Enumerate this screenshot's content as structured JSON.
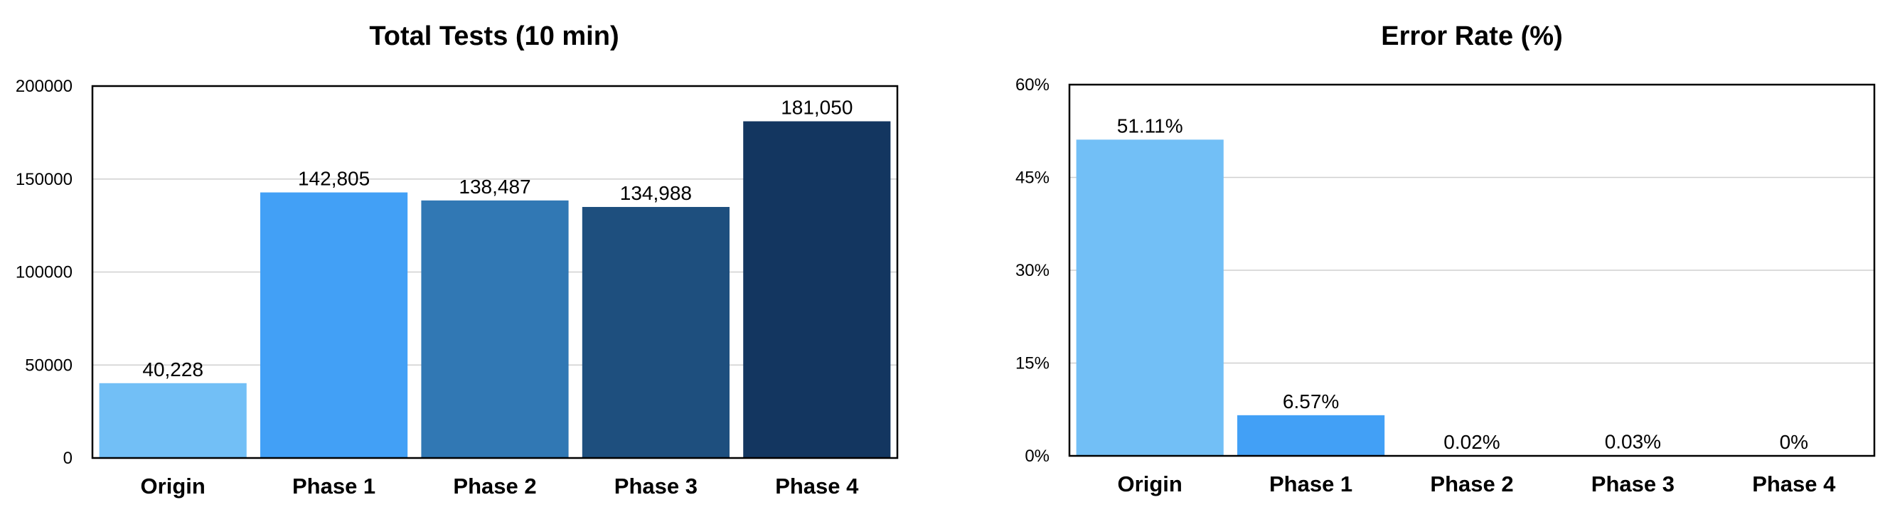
{
  "chart_data": [
    {
      "type": "bar",
      "title": "Total Tests (10 min)",
      "categories": [
        "Origin",
        "Phase 1",
        "Phase 2",
        "Phase 3",
        "Phase 4"
      ],
      "values": [
        40228,
        142805,
        138487,
        134988,
        181050
      ],
      "data_labels": [
        "40,228",
        "142,805",
        "138,487",
        "134,988",
        "181,050"
      ],
      "colors": [
        "#72bff6",
        "#42a0f6",
        "#3178b4",
        "#1e4f7e",
        "#133660"
      ],
      "ylim": [
        0,
        200000
      ],
      "yticks": [
        0,
        50000,
        100000,
        150000,
        200000
      ],
      "ytick_labels": [
        "0",
        "50000",
        "100000",
        "150000",
        "200000"
      ],
      "xlabel": "",
      "ylabel": "",
      "grid": true,
      "legend": "none"
    },
    {
      "type": "bar",
      "title": "Error Rate (%)",
      "categories": [
        "Origin",
        "Phase 1",
        "Phase 2",
        "Phase 3",
        "Phase 4"
      ],
      "values": [
        51.11,
        6.57,
        0.02,
        0.03,
        0
      ],
      "data_labels": [
        "51.11%",
        "6.57%",
        "0.02%",
        "0.03%",
        "0%"
      ],
      "colors": [
        "#72bff6",
        "#42a0f6",
        "#3178b4",
        "#1e4f7e",
        "#133660"
      ],
      "ylim": [
        0,
        60
      ],
      "yticks": [
        0,
        15,
        30,
        45,
        60
      ],
      "ytick_labels": [
        "0%",
        "15%",
        "30%",
        "45%",
        "60%"
      ],
      "xlabel": "",
      "ylabel": "",
      "grid": true,
      "legend": "none"
    }
  ]
}
